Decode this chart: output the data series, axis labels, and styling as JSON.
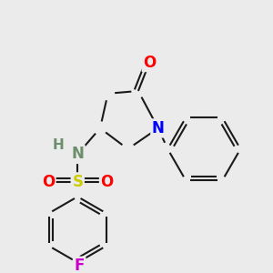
{
  "bg_color": "#ebebeb",
  "bond_color": "#1a1a1a",
  "bond_width": 1.5,
  "dbo": 0.015,
  "atom_colors": {
    "O": "#ff0000",
    "N_blue": "#0000ff",
    "N_sul": "#6b8e6b",
    "S": "#cccc00",
    "F": "#cc00cc",
    "H": "#6b8e6b"
  },
  "fs": 11
}
